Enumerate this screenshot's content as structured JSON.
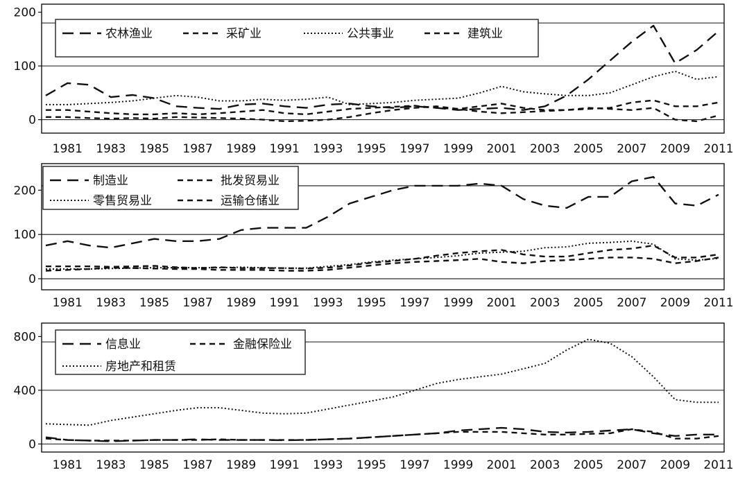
{
  "chart_data": [
    {
      "type": "line",
      "title": "",
      "xlabel": "",
      "ylabel": "",
      "x": [
        1980,
        1981,
        1982,
        1983,
        1984,
        1985,
        1986,
        1987,
        1988,
        1989,
        1990,
        1991,
        1992,
        1993,
        1994,
        1995,
        1996,
        1997,
        1998,
        1999,
        2000,
        2001,
        2002,
        2003,
        2004,
        2005,
        2006,
        2007,
        2008,
        2009,
        2010,
        2011
      ],
      "x_ticks": [
        "1981",
        "1983",
        "1985",
        "1987",
        "1989",
        "1991",
        "1993",
        "1995",
        "1997",
        "1999",
        "2001",
        "2003",
        "2005",
        "2007",
        "2009",
        "2011"
      ],
      "y_ticks": [
        "0",
        "100",
        "200"
      ],
      "ylim": [
        -25,
        215
      ],
      "gridlines_y": [
        0,
        100,
        180
      ],
      "legend_position": "top-left",
      "series": [
        {
          "name": "农林渔业",
          "style": "longdash",
          "values": [
            45,
            68,
            65,
            42,
            46,
            40,
            25,
            22,
            20,
            28,
            30,
            25,
            22,
            28,
            30,
            25,
            22,
            25,
            22,
            18,
            20,
            22,
            18,
            25,
            45,
            75,
            110,
            145,
            175,
            105,
            130,
            165
          ]
        },
        {
          "name": "采矿业",
          "style": "dash",
          "values": [
            18,
            18,
            15,
            12,
            10,
            10,
            12,
            10,
            12,
            15,
            18,
            12,
            10,
            15,
            20,
            22,
            24,
            26,
            22,
            20,
            25,
            30,
            22,
            18,
            18,
            20,
            22,
            32,
            36,
            25,
            25,
            32
          ]
        },
        {
          "name": "公共事业",
          "style": "dotted",
          "values": [
            28,
            28,
            30,
            32,
            35,
            40,
            45,
            42,
            35,
            35,
            38,
            36,
            38,
            42,
            28,
            30,
            32,
            36,
            38,
            40,
            50,
            62,
            52,
            48,
            45,
            45,
            50,
            65,
            80,
            90,
            75,
            80
          ]
        },
        {
          "name": "建筑业",
          "style": "dash",
          "values": [
            5,
            5,
            3,
            2,
            3,
            2,
            5,
            4,
            3,
            2,
            0,
            -3,
            -2,
            0,
            5,
            12,
            18,
            22,
            25,
            20,
            15,
            12,
            14,
            16,
            18,
            22,
            20,
            18,
            22,
            0,
            -3,
            8
          ]
        }
      ]
    },
    {
      "type": "line",
      "title": "",
      "xlabel": "",
      "ylabel": "",
      "x": [
        1980,
        1981,
        1982,
        1983,
        1984,
        1985,
        1986,
        1987,
        1988,
        1989,
        1990,
        1991,
        1992,
        1993,
        1994,
        1995,
        1996,
        1997,
        1998,
        1999,
        2000,
        2001,
        2002,
        2003,
        2004,
        2005,
        2006,
        2007,
        2008,
        2009,
        2010,
        2011
      ],
      "x_ticks": [
        "1981",
        "1983",
        "1985",
        "1987",
        "1989",
        "1991",
        "1993",
        "1995",
        "1997",
        "1999",
        "2001",
        "2003",
        "2005",
        "2007",
        "2009",
        "2011"
      ],
      "y_ticks": [
        "0",
        "100",
        "200"
      ],
      "ylim": [
        -25,
        260
      ],
      "gridlines_y": [
        0,
        100,
        210
      ],
      "legend_position": "top-left",
      "series": [
        {
          "name": "制造业",
          "style": "longdash",
          "values": [
            75,
            85,
            75,
            70,
            80,
            90,
            85,
            85,
            90,
            110,
            115,
            115,
            115,
            140,
            170,
            185,
            200,
            210,
            210,
            210,
            215,
            210,
            180,
            165,
            160,
            185,
            185,
            220,
            230,
            170,
            165,
            190
          ]
        },
        {
          "name": "批发贸易业",
          "style": "dash",
          "values": [
            28,
            28,
            28,
            27,
            28,
            29,
            26,
            24,
            26,
            24,
            24,
            24,
            23,
            25,
            30,
            36,
            40,
            45,
            52,
            58,
            62,
            65,
            55,
            50,
            50,
            58,
            65,
            68,
            75,
            48,
            48,
            55
          ]
        },
        {
          "name": "零售贸易业",
          "style": "dotted",
          "values": [
            22,
            22,
            22,
            23,
            24,
            25,
            25,
            25,
            25,
            26,
            25,
            24,
            24,
            28,
            32,
            38,
            42,
            45,
            48,
            52,
            58,
            60,
            62,
            70,
            72,
            80,
            82,
            85,
            78,
            45,
            42,
            46
          ]
        },
        {
          "name": "运输仓储业",
          "style": "dash",
          "values": [
            18,
            20,
            22,
            25,
            24,
            23,
            22,
            22,
            20,
            20,
            20,
            18,
            18,
            20,
            25,
            30,
            35,
            38,
            40,
            42,
            45,
            38,
            35,
            40,
            42,
            45,
            48,
            48,
            45,
            35,
            40,
            48
          ]
        }
      ]
    },
    {
      "type": "line",
      "title": "",
      "xlabel": "",
      "ylabel": "",
      "x": [
        1980,
        1981,
        1982,
        1983,
        1984,
        1985,
        1986,
        1987,
        1988,
        1989,
        1990,
        1991,
        1992,
        1993,
        1994,
        1995,
        1996,
        1997,
        1998,
        1999,
        2000,
        2001,
        2002,
        2003,
        2004,
        2005,
        2006,
        2007,
        2008,
        2009,
        2010,
        2011
      ],
      "x_ticks": [
        "1981",
        "1983",
        "1985",
        "1987",
        "1989",
        "1991",
        "1993",
        "1995",
        "1997",
        "1999",
        "2001",
        "2003",
        "2005",
        "2007",
        "2009",
        "2011"
      ],
      "y_ticks": [
        "0",
        "400",
        "800"
      ],
      "ylim": [
        -60,
        900
      ],
      "gridlines_y": [
        0,
        400,
        760
      ],
      "legend_position": "top-left",
      "series": [
        {
          "name": "信息业",
          "style": "longdash",
          "values": [
            50,
            30,
            25,
            20,
            25,
            30,
            30,
            35,
            30,
            30,
            30,
            28,
            30,
            35,
            40,
            50,
            60,
            70,
            80,
            100,
            110,
            120,
            110,
            90,
            85,
            90,
            100,
            110,
            80,
            60,
            70,
            70
          ]
        },
        {
          "name": "金融保险业",
          "style": "dash",
          "values": [
            40,
            30,
            25,
            25,
            25,
            30,
            30,
            30,
            35,
            30,
            30,
            30,
            30,
            35,
            40,
            50,
            60,
            70,
            80,
            90,
            90,
            90,
            80,
            70,
            70,
            75,
            80,
            110,
            90,
            40,
            40,
            60
          ]
        },
        {
          "name": "房地产和租赁",
          "style": "dotted",
          "values": [
            150,
            145,
            140,
            175,
            200,
            225,
            250,
            270,
            270,
            250,
            230,
            225,
            230,
            260,
            290,
            320,
            350,
            400,
            450,
            480,
            500,
            520,
            560,
            600,
            700,
            780,
            750,
            650,
            500,
            330,
            310,
            310
          ]
        }
      ]
    }
  ]
}
